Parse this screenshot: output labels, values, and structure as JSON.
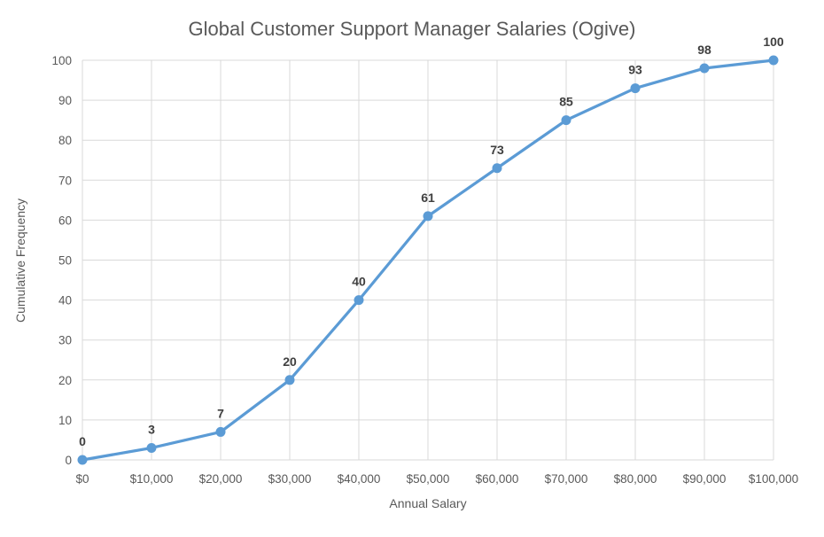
{
  "chart_data": {
    "type": "line",
    "title": "Global Customer Support Manager Salaries (Ogive)",
    "xlabel": "Annual Salary",
    "ylabel": "Cumulative Frequency",
    "categories": [
      "$0",
      "$10,000",
      "$20,000",
      "$30,000",
      "$40,000",
      "$50,000",
      "$60,000",
      "$70,000",
      "$80,000",
      "$90,000",
      "$100,000"
    ],
    "values": [
      0,
      3,
      7,
      20,
      40,
      61,
      73,
      85,
      93,
      98,
      100
    ],
    "y_ticks": [
      "0",
      "10",
      "20",
      "30",
      "40",
      "50",
      "60",
      "70",
      "80",
      "90",
      "100"
    ],
    "ylim": [
      0,
      100
    ],
    "y_tick_step": 10,
    "grid": true,
    "legend": "none",
    "data_labels": true,
    "data_label_position": "above",
    "colors": {
      "line": "#5B9BD5",
      "marker": "#5B9BD5",
      "gridline": "#D9D9D9",
      "axis_text": "#595959",
      "title_text": "#595959",
      "data_label_text": "#404040",
      "background": "#FFFFFF"
    }
  }
}
